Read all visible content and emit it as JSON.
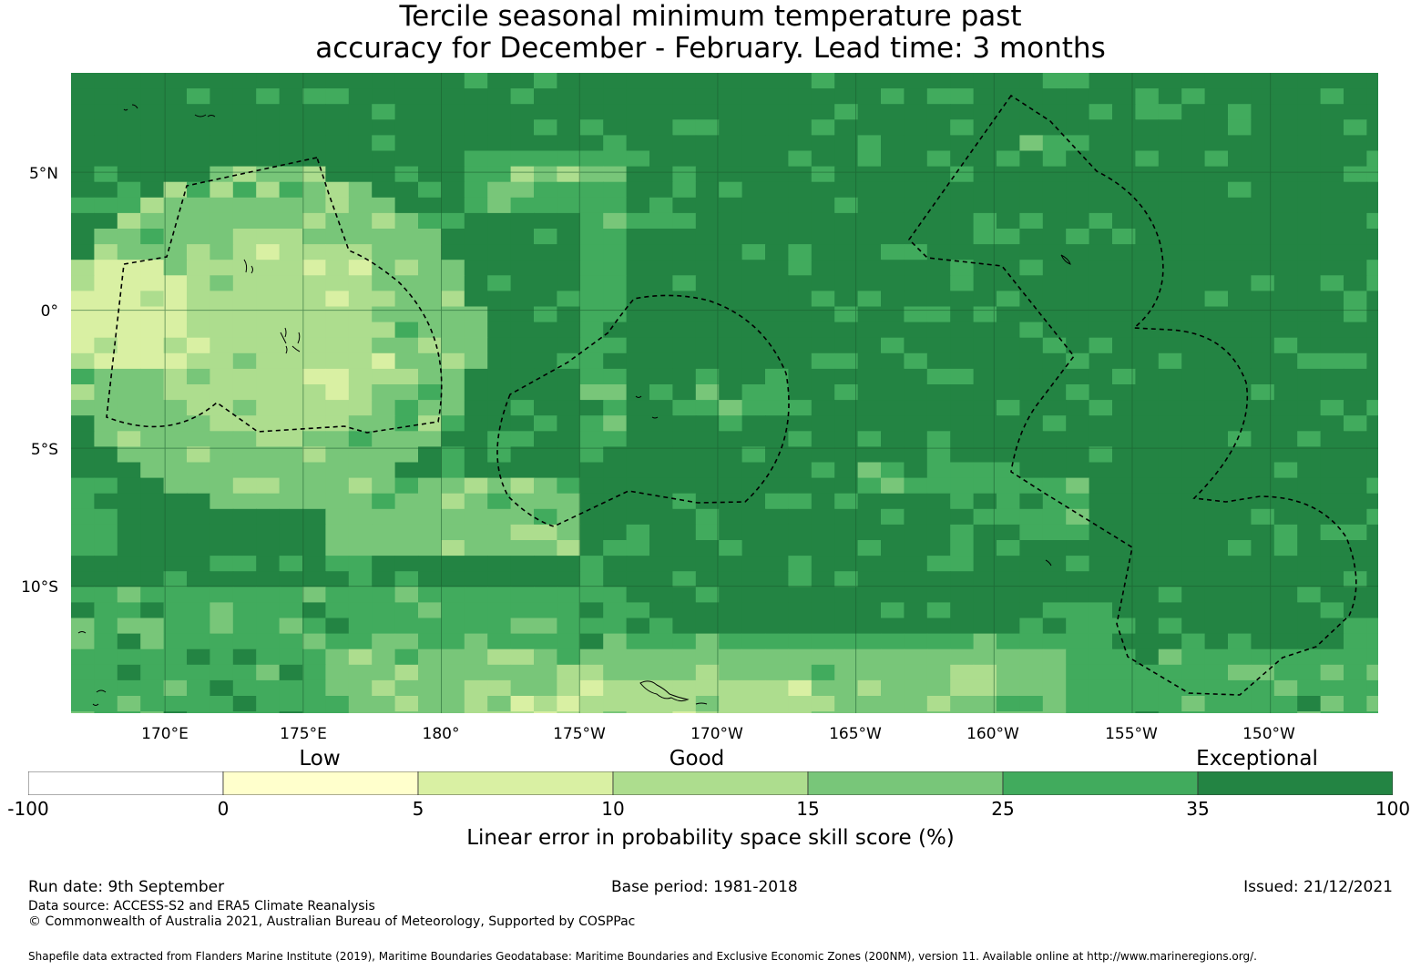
{
  "title": {
    "line1": "Tercile seasonal minimum temperature past",
    "line2": "accuracy for December - February. Lead time: 3 months"
  },
  "map": {
    "lon_range": [
      166.6,
      213.9
    ],
    "lat_range": [
      -14.6,
      8.6
    ],
    "lat_ticks": [
      {
        "value": 5,
        "label": "5°N"
      },
      {
        "value": 0,
        "label": "0°"
      },
      {
        "value": -5,
        "label": "5°S"
      },
      {
        "value": -10,
        "label": "10°S"
      }
    ],
    "lon_ticks": [
      {
        "value": 170,
        "label": "170°E"
      },
      {
        "value": 175,
        "label": "175°E"
      },
      {
        "value": 180,
        "label": "180°"
      },
      {
        "value": 185,
        "label": "175°W"
      },
      {
        "value": 190,
        "label": "170°W"
      },
      {
        "value": 195,
        "label": "165°W"
      },
      {
        "value": 200,
        "label": "160°W"
      },
      {
        "value": 205,
        "label": "155°W"
      },
      {
        "value": 210,
        "label": "150°W"
      }
    ],
    "gridlines": true
  },
  "legend": {
    "categories": [
      "Low",
      "Good",
      "Exceptional"
    ],
    "bins": [
      {
        "from": -100,
        "to": 0,
        "color": "#ffffff"
      },
      {
        "from": 0,
        "to": 5,
        "color": "#ffffcc"
      },
      {
        "from": 5,
        "to": 10,
        "color": "#d9f0a3"
      },
      {
        "from": 10,
        "to": 15,
        "color": "#addd8e"
      },
      {
        "from": 15,
        "to": 25,
        "color": "#78c679"
      },
      {
        "from": 25,
        "to": 35,
        "color": "#41ab5d"
      },
      {
        "from": 35,
        "to": 100,
        "color": "#238443"
      }
    ],
    "tick_labels": [
      "-100",
      "0",
      "5",
      "10",
      "15",
      "25",
      "35",
      "100"
    ],
    "label": "Linear error in probability space skill score (%)"
  },
  "footer": {
    "run_date": "Run date: 9th September",
    "base_period": "Base period: 1981-2018",
    "issued": "Issued: 21/12/2021",
    "data_source": "Data source: ACCESS-S2 and ERA5 Climate Reanalysis",
    "copyright": "© Commonwealth of Australia 2021, Australian Bureau of Meteorology, Supported by COSPPac",
    "shapefile": "Shapefile data extracted from Flanders Marine Institute (2019), Maritime Boundaries Geodatabase: Maritime Boundaries and Exclusive Economic Zones (200NM), version 11. Available online at http://www.marineregions.org/."
  }
}
